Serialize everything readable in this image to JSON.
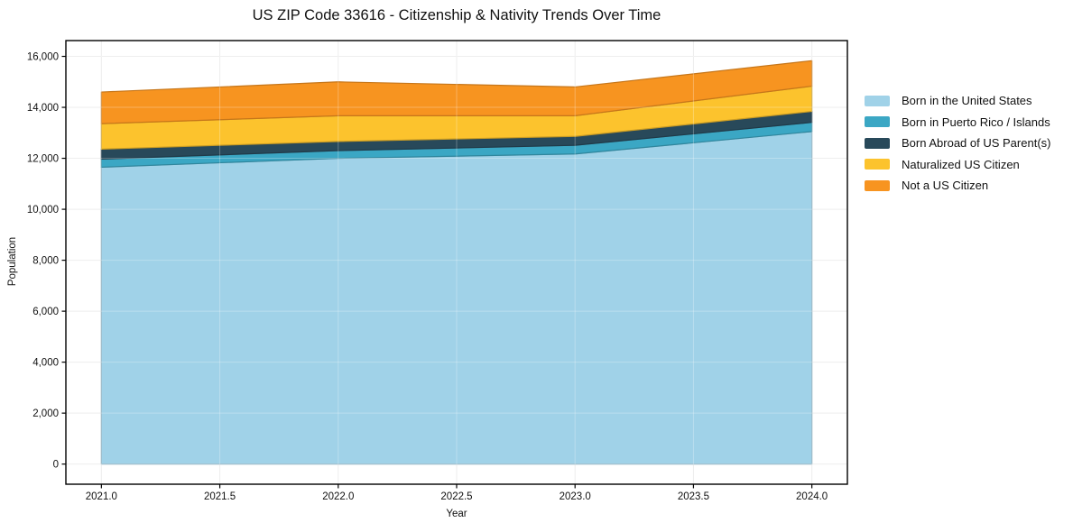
{
  "chart_data": {
    "type": "area",
    "stacked": true,
    "title": "US ZIP Code 33616 - Citizenship & Nativity Trends Over Time",
    "xlabel": "Year",
    "ylabel": "Population",
    "x": [
      2021,
      2022,
      2023,
      2024
    ],
    "series": [
      {
        "name": "Born in the United States",
        "color": "#a0d2e8",
        "values": [
          11650,
          12000,
          12170,
          13050
        ]
      },
      {
        "name": "Born in Puerto Rico / Islands",
        "color": "#3ba7c4",
        "values": [
          320,
          300,
          340,
          360
        ]
      },
      {
        "name": "Born Abroad of US Parent(s)",
        "color": "#28495a",
        "values": [
          390,
          360,
          350,
          430
        ]
      },
      {
        "name": "Naturalized US Citizen",
        "color": "#fcc32d",
        "values": [
          1000,
          1010,
          810,
          990
        ]
      },
      {
        "name": "Not a US Citizen",
        "color": "#f79420",
        "values": [
          1240,
          1330,
          1130,
          1000
        ]
      }
    ],
    "totals": [
      14600,
      15000,
      14800,
      15830
    ],
    "xtick_values": [
      2021.0,
      2021.5,
      2022.0,
      2022.5,
      2023.0,
      2023.5,
      2024.0
    ],
    "xtick_labels": [
      "2021.0",
      "2021.5",
      "2022.0",
      "2022.5",
      "2023.0",
      "2023.5",
      "2024.0"
    ],
    "ytick_values": [
      0,
      2000,
      4000,
      6000,
      8000,
      10000,
      12000,
      14000,
      16000
    ],
    "ytick_labels": [
      "0",
      "2,000",
      "4,000",
      "6,000",
      "8,000",
      "10,000",
      "12,000",
      "14,000",
      "16,000"
    ],
    "xlim": [
      2020.85,
      2024.15
    ],
    "ylim": [
      -790,
      16620
    ],
    "grid": true,
    "legend_position": "right",
    "colors": {
      "gridline": "#e8e8e8",
      "spine": "#000000",
      "text": "#111111",
      "plot_background": "#ffffff"
    }
  }
}
